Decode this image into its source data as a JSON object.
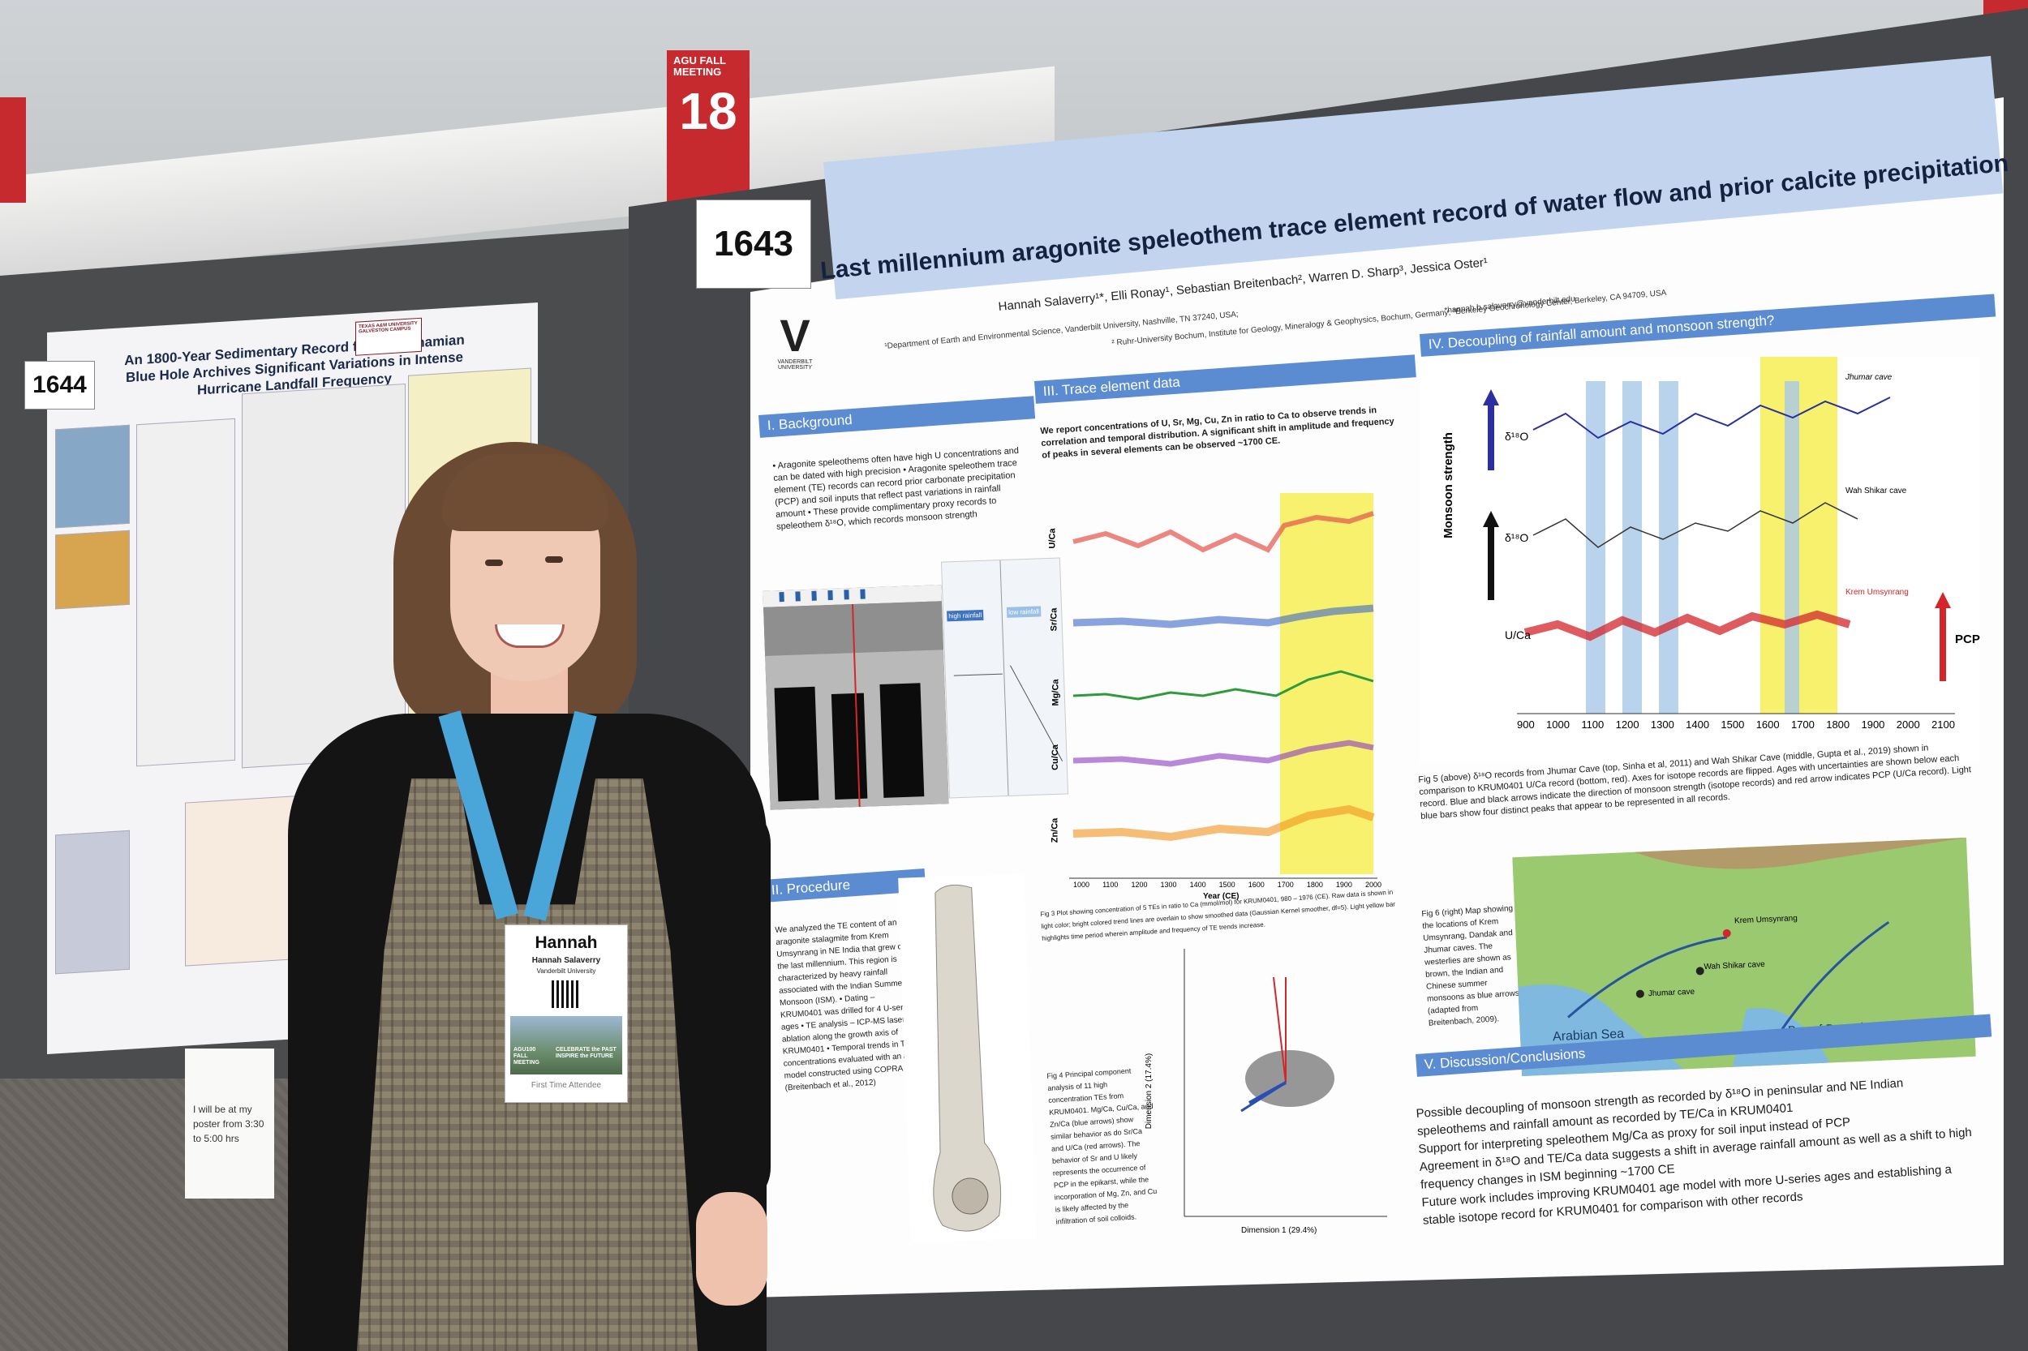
{
  "booth_sign": {
    "top_text": "AGU FALL MEETING",
    "number": "18"
  },
  "left_poster": {
    "number": "1644",
    "title": "An 1800-Year Sedimentary Record from a Bahamian Blue Hole Archives Significant Variations in Intense Hurricane Landfall Frequency",
    "logo_text": "TEXAS A&M UNIVERSITY GALVESTON CAMPUS"
  },
  "note": {
    "text": "I will be at my poster from 3:30 to 5:00 hrs"
  },
  "right_poster": {
    "number": "1643",
    "title": "Last millennium aragonite speleothem trace element record of water flow and prior calcite precipitation",
    "authors": "Hannah Salaverry¹*, Elli Ronay¹, Sebastian Breitenbach², Warren D. Sharp³, Jessica Oster¹",
    "affiliation_1": "¹Department of Earth and Environmental Science, Vanderbilt University, Nashville, TN 37240, USA;",
    "affiliation_2": "² Ruhr-University Bochum, Institute for Geology, Mineralogy & Geophysics, Bochum, Germany; ³Berkeley Geochronology Center, Berkeley, CA 94709, USA",
    "email": "*hannah.b.salaverry@vanderbilt.edu",
    "logo": {
      "mark": "V",
      "text": "VANDERBILT UNIVERSITY"
    },
    "sections": {
      "background": "I. Background",
      "procedure": "II. Procedure",
      "trace": "III. Trace element data",
      "decoupling": "IV. Decoupling of rainfall amount and monsoon strength?",
      "discussion": "V. Discussion/Conclusions"
    },
    "background_text": "• Aragonite speleothems often have high U concentrations and can be dated with high precision • Aragonite speleothem trace element (TE) records can record prior carbonate precipitation (PCP) and soil inputs that reflect past variations in rainfall amount • These provide complimentary proxy records to speleothem δ¹⁸O, which records monsoon strength",
    "trace_text": "We report concentrations of U, Sr, Mg, Cu, Zn in ratio to Ca to observe trends in correlation and temporal distribution. A significant shift in amplitude and frequency of peaks in several elements can be observed ~1700 CE.",
    "procedure_text": "We analyzed the TE content of an aragonite stalagmite from Krem Umsynrang in NE India that grew over the last millennium. This region is characterized by heavy rainfall associated with the Indian Summer Monsoon (ISM). • Dating – KRUM0401 was drilled for 4 U-series ages • TE analysis – ICP-MS laser ablation along the growth axis of KRUM0401 • Temporal trends in TE concentrations evaluated with an age model constructed using COPRA (Breitenbach et al., 2012)",
    "fig3_caption": "Fig 3 Plot showing concentration of 5 TEs in ratio to Ca (mmol/mol) for KRUM0401, 980 – 1976 (CE). Raw data is shown in light color; bright colored trend lines are overlain to show smoothed data (Gaussian Kernel smoother, df=5). Light yellow bar highlights time period wherein amplitude and frequency of TE trends increase.",
    "pca_caption": "Fig 4 Principal component analysis of 11 high concentration TEs from KRUM0401. Mg/Ca, Cu/Ca, and Zn/Ca (blue arrows) show similar behavior as do Sr/Ca and U/Ca (red arrows). The behavior of Sr and U likely represents the occurrence of PCP in the epikarst, while the incorporation of Mg, Zn, and Cu is likely affected by the infiltration of soil colloids.",
    "fig5_caption": "Fig 5 (above) δ¹⁸O records from Jhumar Cave (top, Sinha et al, 2011) and Wah Shikar Cave (middle, Gupta et al., 2019) shown in comparison to KRUM0401 U/Ca record (bottom, red). Axes for isotope records are flipped. Ages with uncertainties are shown below each record. Blue and black arrows indicate the direction of monsoon strength (isotope records) and red arrow indicates PCP (U/Ca record). Light blue bars show four distinct peaks that appear to be represented in all records.",
    "fig6_caption": "Fig 6 (right) Map showing the locations of Krem Umsynrang, Dandak and Jhumar caves. The westerlies are shown as brown, the Indian and Chinese summer monsoons as blue arrows (adapted from Breitenbach, 2009).",
    "discussion": [
      "Possible decoupling of monsoon strength as recorded by δ¹⁸O in peninsular and NE Indian speleothems and rainfall amount as recorded by TE/Ca in KRUM0401",
      "Support for interpreting speleothem Mg/Ca as proxy for soil input instead of PCP",
      "Agreement in δ¹⁸O and TE/Ca data suggests a shift in average rainfall amount as well as a shift to high frequency changes in ISM beginning ~1700 CE",
      "Future work includes improving KRUM0401 age model with more U-series ages and establishing a stable isotope record for KRUM0401 for comparison with other records"
    ],
    "map_labels": {
      "arabian": "Arabian Sea",
      "bengal": "Bay of Bengal",
      "krem": "Krem Umsynrang",
      "wah": "Wah Shikar cave",
      "jhumar": "Jhumar cave"
    },
    "fig_labels": {
      "jhumar": "Jhumar cave",
      "wah": "Wah Shikar cave",
      "krem": "Krem Umsynrang",
      "monsoon": "Monsoon strength",
      "pcp": "PCP",
      "d18o": "δ¹⁸O",
      "uca": "U/Ca",
      "year": "Year (CE)",
      "dim1": "Dimension 1 (29.4%)",
      "dim2": "Dimension 2 (17.4%)"
    },
    "te_labels": [
      "U/Ca",
      "Sr/Ca",
      "Mg/Ca",
      "Cu/Ca",
      "Zn/Ca"
    ],
    "x_ticks": [
      "1000",
      "1100",
      "1200",
      "1300",
      "1400",
      "1500",
      "1600",
      "1700",
      "1800",
      "1900",
      "2000"
    ],
    "iv_x_ticks": [
      "900",
      "1000",
      "1100",
      "1200",
      "1300",
      "1400",
      "1500",
      "1600",
      "1700",
      "1800",
      "1900",
      "2000",
      "2100"
    ],
    "rain_labels": {
      "high": "high rainfall",
      "low": "low rainfall"
    }
  },
  "badge": {
    "first_name": "Hannah",
    "full_name": "Hannah Salaverry",
    "organization": "Vanderbilt University",
    "event": "AGU100 FALL MEETING",
    "tagline": "CELEBRATE the PAST INSPIRE the FUTURE",
    "footer": "First Time Attendee"
  }
}
